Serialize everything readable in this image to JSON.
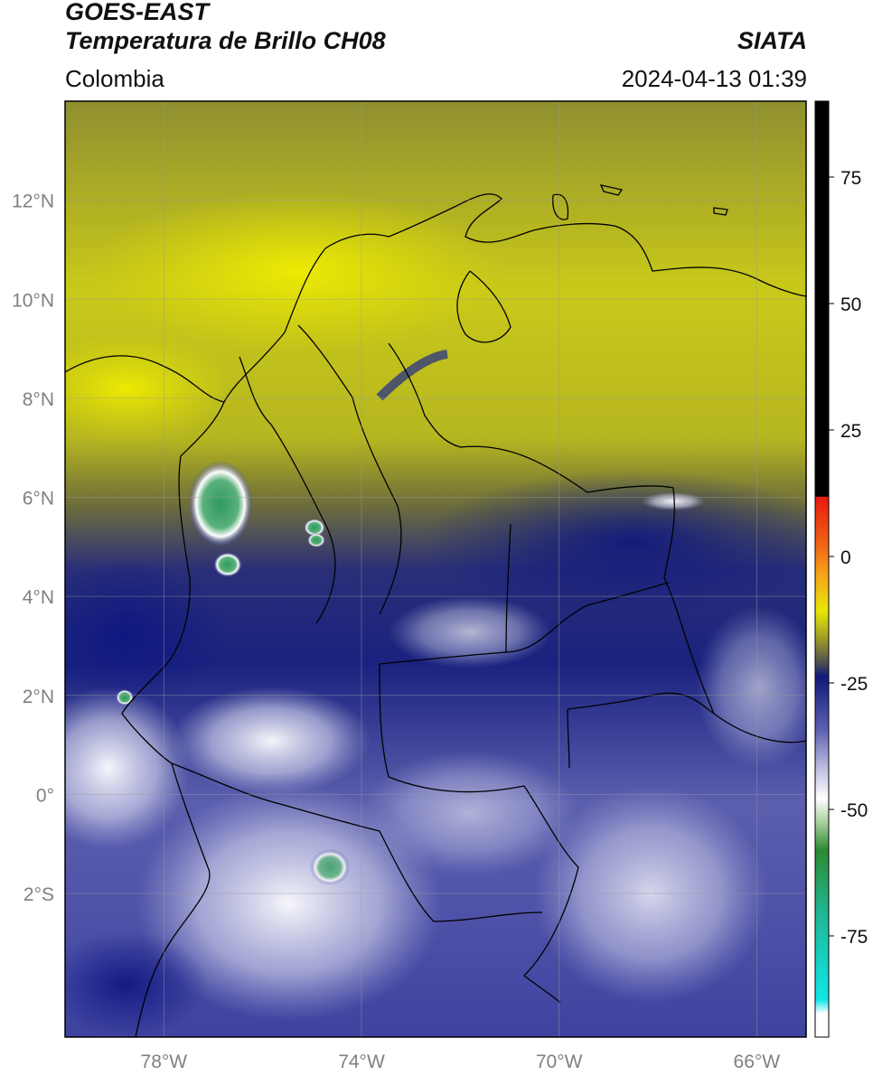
{
  "header": {
    "satellite": "GOES-EAST",
    "product": "Temperatura de Brillo CH08",
    "organization": "SIATA",
    "region": "Colombia",
    "datetime": "2024-04-13 01:39"
  },
  "map": {
    "lat_labels": [
      "12°N",
      "10°N",
      "8°N",
      "6°N",
      "4°N",
      "2°N",
      "0°",
      "2°S"
    ],
    "lat_values": [
      12,
      10,
      8,
      6,
      4,
      2,
      0,
      -2
    ],
    "lon_labels": [
      "78°W",
      "74°W",
      "70°W",
      "66°W"
    ],
    "lon_values": [
      -78,
      -74,
      -70,
      -66
    ],
    "lat_range": [
      -4.9,
      14.0
    ],
    "lon_range": [
      -80.0,
      -65.0
    ],
    "grid": true
  },
  "colorbar": {
    "tick_labels": [
      "75",
      "50",
      "25",
      "0",
      "-25",
      "-50",
      "-75"
    ],
    "tick_values": [
      75,
      50,
      25,
      0,
      -25,
      -50,
      -75
    ],
    "range": [
      -95,
      90
    ],
    "colors": {
      "black_above": "#000000",
      "red": "#e8190f",
      "orange": "#f7a21b",
      "yellow": "#e7e705",
      "olive": "#9a9a26",
      "gray": "#4f4f4f",
      "navy": "#0f1a7a",
      "lavender": "#b7b8dd",
      "white": "#ffffff",
      "green": "#2c8a32",
      "teal": "#1fb896",
      "cyan": "#10e6e6"
    }
  }
}
